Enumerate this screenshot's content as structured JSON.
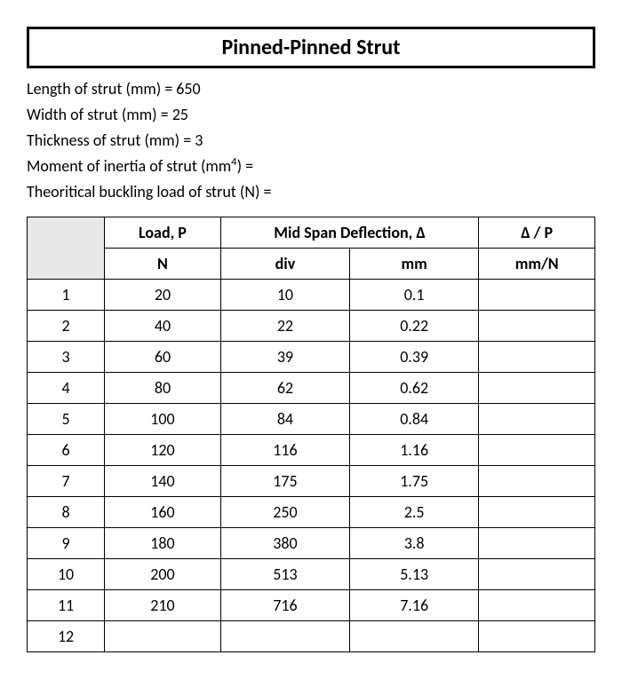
{
  "title": "Pinned-Pinned Strut",
  "params": {
    "length": "Length of strut (mm) = 650",
    "width": "Width of strut (mm) = 25",
    "thickness": "Thickness of strut (mm) = 3",
    "moment_pre": "Moment of inertia of strut (mm",
    "moment_sup": "4",
    "moment_post": ") =",
    "buckling": "Theoritical buckling load of strut (N) ="
  },
  "table": {
    "headers": {
      "load": "Load, P",
      "deflection": "Mid Span Deflection, Δ",
      "ratio": "Δ / P",
      "load_unit": "N",
      "div": "div",
      "mm": "mm",
      "ratio_unit": "mm/N"
    },
    "rows": [
      {
        "idx": "1",
        "load": "20",
        "div": "10",
        "mm": "0.1",
        "ratio": ""
      },
      {
        "idx": "2",
        "load": "40",
        "div": "22",
        "mm": "0.22",
        "ratio": ""
      },
      {
        "idx": "3",
        "load": "60",
        "div": "39",
        "mm": "0.39",
        "ratio": ""
      },
      {
        "idx": "4",
        "load": "80",
        "div": "62",
        "mm": "0.62",
        "ratio": ""
      },
      {
        "idx": "5",
        "load": "100",
        "div": "84",
        "mm": "0.84",
        "ratio": ""
      },
      {
        "idx": "6",
        "load": "120",
        "div": "116",
        "mm": "1.16",
        "ratio": ""
      },
      {
        "idx": "7",
        "load": "140",
        "div": "175",
        "mm": "1.75",
        "ratio": ""
      },
      {
        "idx": "8",
        "load": "160",
        "div": "250",
        "mm": "2.5",
        "ratio": ""
      },
      {
        "idx": "9",
        "load": "180",
        "div": "380",
        "mm": "3.8",
        "ratio": ""
      },
      {
        "idx": "10",
        "load": "200",
        "div": "513",
        "mm": "5.13",
        "ratio": ""
      },
      {
        "idx": "11",
        "load": "210",
        "div": "716",
        "mm": "7.16",
        "ratio": ""
      },
      {
        "idx": "12",
        "load": "",
        "div": "",
        "mm": "",
        "ratio": ""
      }
    ]
  }
}
